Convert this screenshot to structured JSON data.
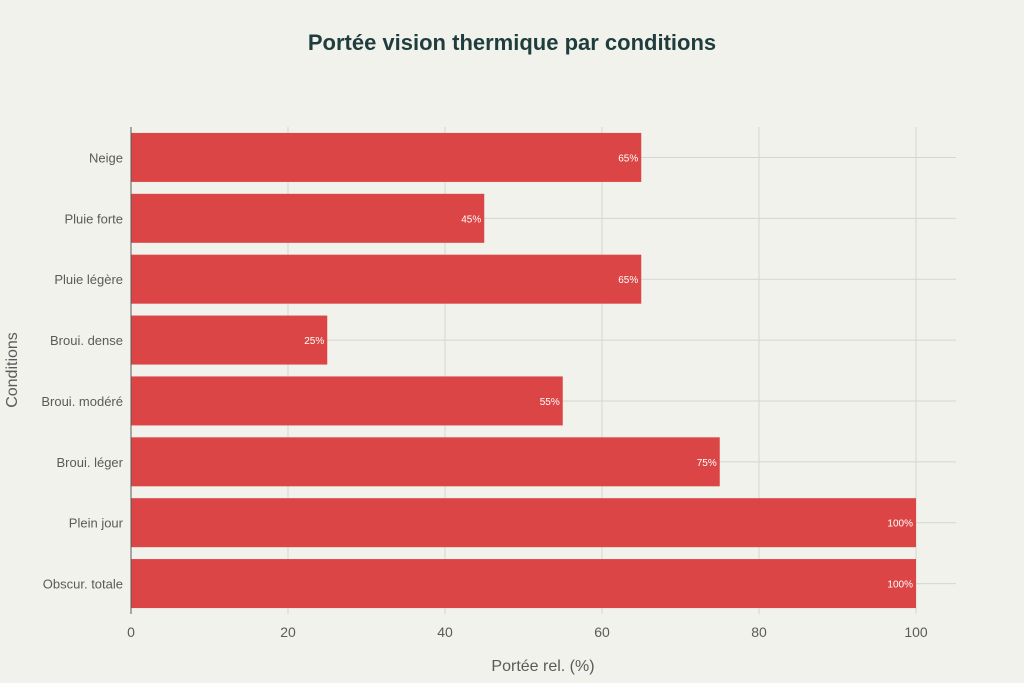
{
  "colors": {
    "background": "#f2f2ec",
    "bar": "#db4545",
    "grid": "#d6d6d0",
    "axis_line": "#5a5a5a",
    "title": "#1f3d3d",
    "tick_text": "#5a5a5a",
    "bar_label": "#ffffff"
  },
  "chart_data": {
    "type": "bar",
    "orientation": "horizontal",
    "title": "Portée vision thermique par conditions",
    "xlabel": "Portée rel. (%)",
    "ylabel": "Conditions",
    "xlim": [
      0,
      105
    ],
    "xticks": [
      0,
      20,
      40,
      60,
      80,
      100
    ],
    "grid": true,
    "legend": "none",
    "categories": [
      "Neige",
      "Pluie forte",
      "Pluie légère",
      "Broui. dense",
      "Broui. modéré",
      "Broui. léger",
      "Plein jour",
      "Obscur. totale"
    ],
    "values": [
      65,
      45,
      65,
      25,
      55,
      75,
      100,
      100
    ],
    "data_labels": [
      "65%",
      "45%",
      "65%",
      "25%",
      "55%",
      "75%",
      "100%",
      "100%"
    ]
  }
}
